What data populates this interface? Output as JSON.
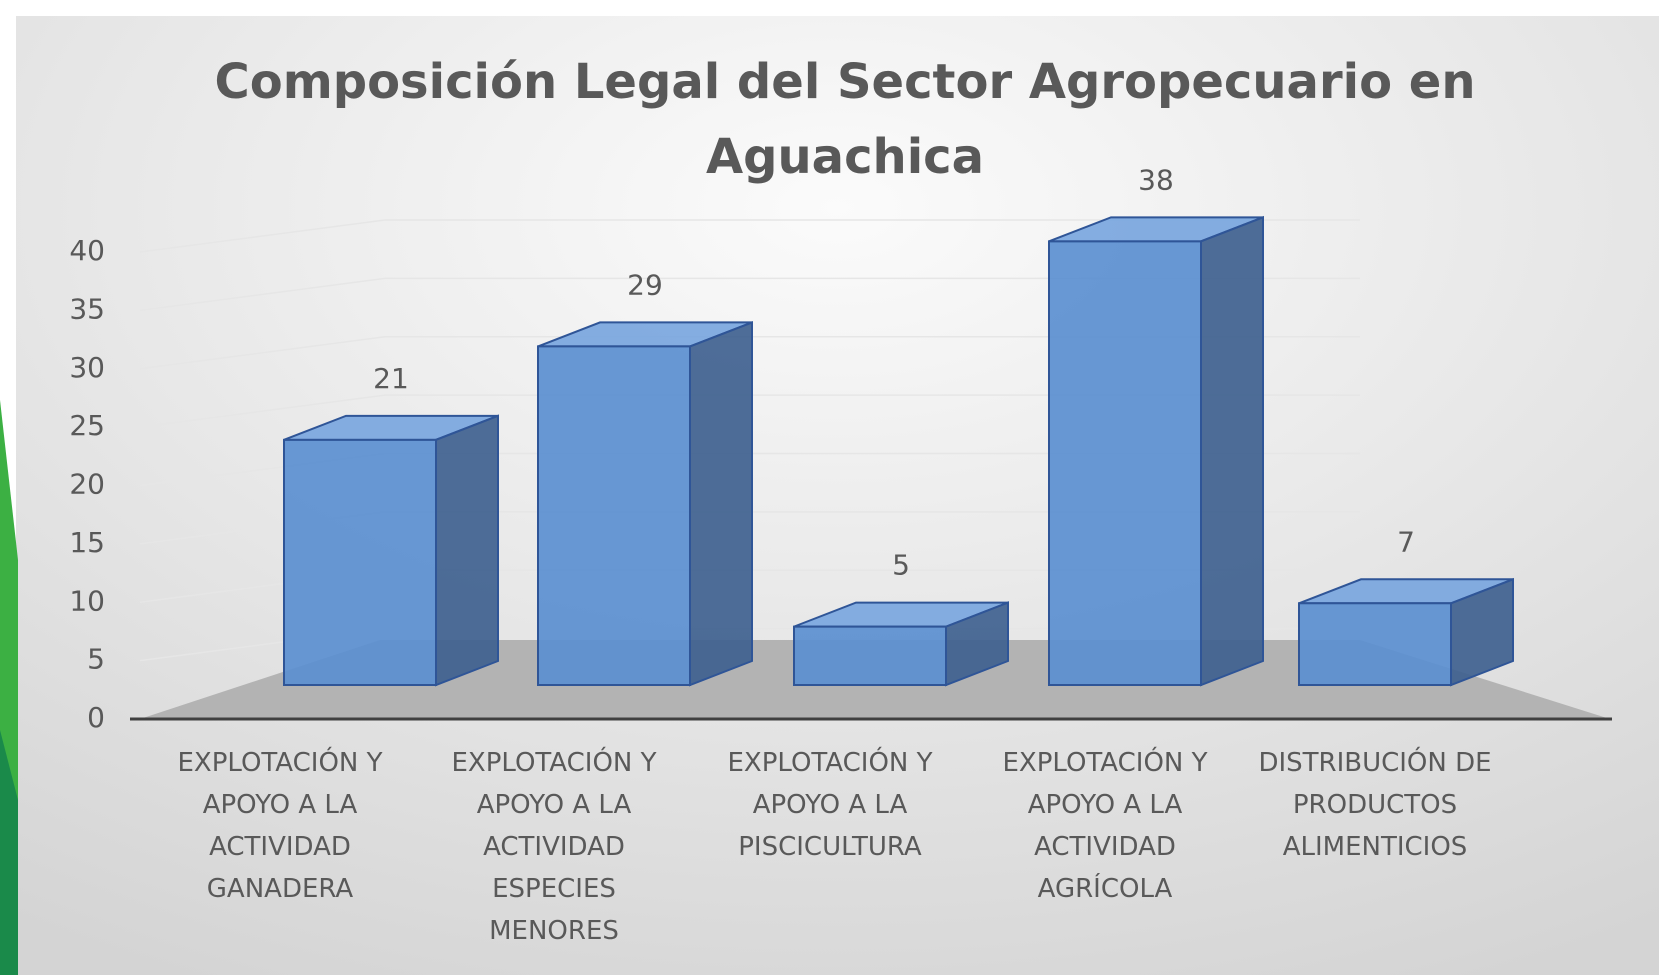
{
  "chart_data": {
    "type": "bar3d",
    "title": "Composición Legal del Sector Agropecuario en Aguachica",
    "categories": [
      "EXPLOTACIÓN Y APOYO A LA ACTIVIDAD GANADERA",
      "EXPLOTACIÓN Y APOYO A LA ACTIVIDAD ESPECIES MENORES",
      "EXPLOTACIÓN Y APOYO A LA PISCICULTURA",
      "EXPLOTACIÓN Y APOYO A LA ACTIVIDAD AGRÍCOLA",
      "DISTRIBUCIÓN DE PRODUCTOS ALIMENTICIOS"
    ],
    "values": [
      21,
      29,
      5,
      38,
      7
    ],
    "color": "#5b8fd0",
    "ylim": [
      0,
      40
    ],
    "yticks": [
      0,
      5,
      10,
      15,
      20,
      25,
      30,
      35,
      40
    ],
    "grid": true
  }
}
